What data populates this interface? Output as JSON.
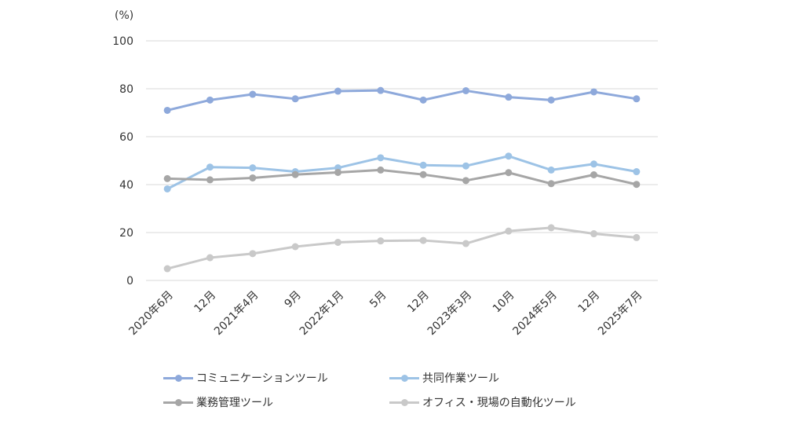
{
  "chart_data": {
    "type": "line",
    "unit_label": "(%)",
    "ylim": [
      0,
      100
    ],
    "yticks": [
      0,
      20,
      40,
      60,
      80,
      100
    ],
    "categories": [
      "2020年6月",
      "12月",
      "2021年4月",
      "9月",
      "2022年1月",
      "5月",
      "12月",
      "2023年3月",
      "10月",
      "2024年5月",
      "12月",
      "2025年7月"
    ],
    "series": [
      {
        "name": "コミュニケーションツール",
        "color": "#8ea9db",
        "values": [
          71.0,
          75.3,
          77.7,
          75.8,
          79.0,
          79.3,
          75.3,
          79.2,
          76.5,
          75.3,
          78.7,
          75.8
        ]
      },
      {
        "name": "共同作業ツール",
        "color": "#9dc3e6",
        "values": [
          38.2,
          47.3,
          47.0,
          45.4,
          47.0,
          51.2,
          48.1,
          47.8,
          51.9,
          46.1,
          48.6,
          45.4
        ]
      },
      {
        "name": "業務管理ツール",
        "color": "#a6a6a6",
        "values": [
          42.5,
          42.0,
          42.8,
          44.2,
          45.1,
          46.1,
          44.2,
          41.7,
          45.0,
          40.4,
          44.1,
          40.1
        ]
      },
      {
        "name": "オフィス・現場の自動化ツール",
        "color": "#c9c9c9",
        "values": [
          4.9,
          9.5,
          11.2,
          14.1,
          15.9,
          16.5,
          16.7,
          15.4,
          20.6,
          22.0,
          19.5,
          17.9
        ]
      }
    ],
    "grid": true,
    "legend_position": "bottom"
  }
}
